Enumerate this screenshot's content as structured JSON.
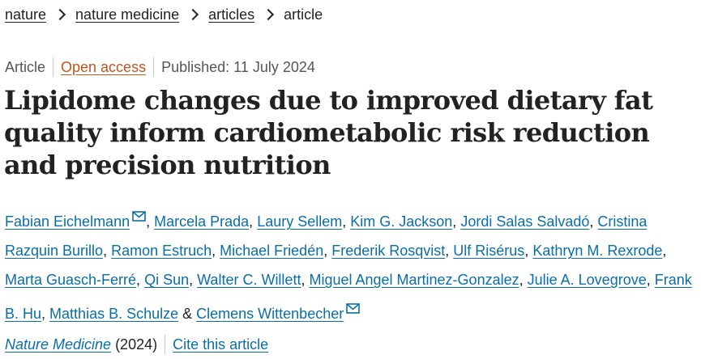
{
  "breadcrumb": {
    "items": [
      "nature",
      "nature medicine",
      "articles"
    ],
    "current": "article"
  },
  "meta": {
    "type": "Article",
    "access": "Open access",
    "published": "Published: 11 July 2024"
  },
  "title": "Lipidome changes due to improved dietary fat quality inform cardiometabolic risk reduction and precision nutrition",
  "authors": [
    {
      "name": "Fabian Eichelmann",
      "mail": true,
      "sep": ", "
    },
    {
      "name": "Marcela Prada",
      "sep": ", "
    },
    {
      "name": "Laury Sellem",
      "sep": ", "
    },
    {
      "name": "Kim G. Jackson",
      "sep": ", "
    },
    {
      "name": "Jordi Salas Salvadó",
      "sep": ", "
    },
    {
      "name": "Cristina Razquin Burillo",
      "sep": ", "
    },
    {
      "name": "Ramon Estruch",
      "sep": ", "
    },
    {
      "name": "Michael Friedén",
      "sep": ", "
    },
    {
      "name": "Frederik Rosqvist",
      "sep": ", "
    },
    {
      "name": "Ulf Risérus",
      "sep": ", "
    },
    {
      "name": "Kathryn M. Rexrode",
      "sep": ", "
    },
    {
      "name": "Marta Guasch-Ferré",
      "sep": ", "
    },
    {
      "name": "Qi Sun",
      "sep": ", "
    },
    {
      "name": "Walter C. Willett",
      "sep": ", "
    },
    {
      "name": "Miguel Angel Martinez-Gonzalez",
      "sep": ", "
    },
    {
      "name": "Julie A. Lovegrove",
      "sep": ", "
    },
    {
      "name": "Frank B. Hu",
      "sep": ", "
    },
    {
      "name": "Matthias B. Schulze",
      "sep": " & "
    },
    {
      "name": "Clemens Wittenbecher",
      "mail": true,
      "sep": ""
    }
  ],
  "journal": {
    "name": "Nature Medicine",
    "year": "(2024)",
    "cite": "Cite this article"
  },
  "icons": {
    "mail": "mail-icon"
  },
  "colors": {
    "link": "#0a6fa6",
    "open_access": "#c0551f",
    "text": "#222222"
  }
}
